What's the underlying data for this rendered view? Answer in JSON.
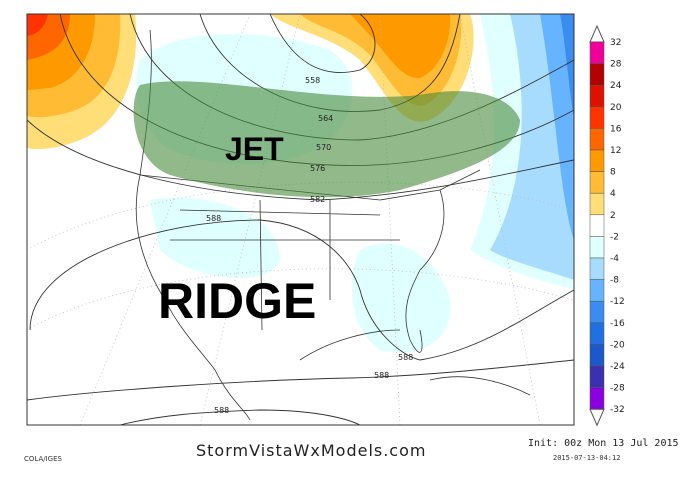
{
  "map": {
    "annotations": {
      "jet": "JET",
      "ridge": "RIDGE"
    },
    "contour_labels": [
      "558",
      "564",
      "570",
      "576",
      "582",
      "588",
      "588",
      "588",
      "588"
    ],
    "jet_color": "#4a8a3a"
  },
  "colorbar": {
    "labels": [
      "32",
      "28",
      "24",
      "20",
      "16",
      "12",
      "8",
      "4",
      "2",
      "-2",
      "-4",
      "-8",
      "-12",
      "-16",
      "-20",
      "-24",
      "-28",
      "-32"
    ],
    "colors": [
      "#ee0099",
      "#b30000",
      "#dd1100",
      "#ff3300",
      "#ff6600",
      "#ff9900",
      "#ffbb33",
      "#ffdd77",
      "#ffffff",
      "#e0ffff",
      "#a8dcff",
      "#66b4ff",
      "#3a8cf0",
      "#2070e0",
      "#1a58cc",
      "#3a30b0",
      "#8a00e0"
    ]
  },
  "footer": {
    "site": "StormVistaWxModels.com",
    "init": "Init: 00z Mon 13 Jul 2015",
    "stamp": "2015-07-13-04:12",
    "credit": "COLA/IGES"
  }
}
